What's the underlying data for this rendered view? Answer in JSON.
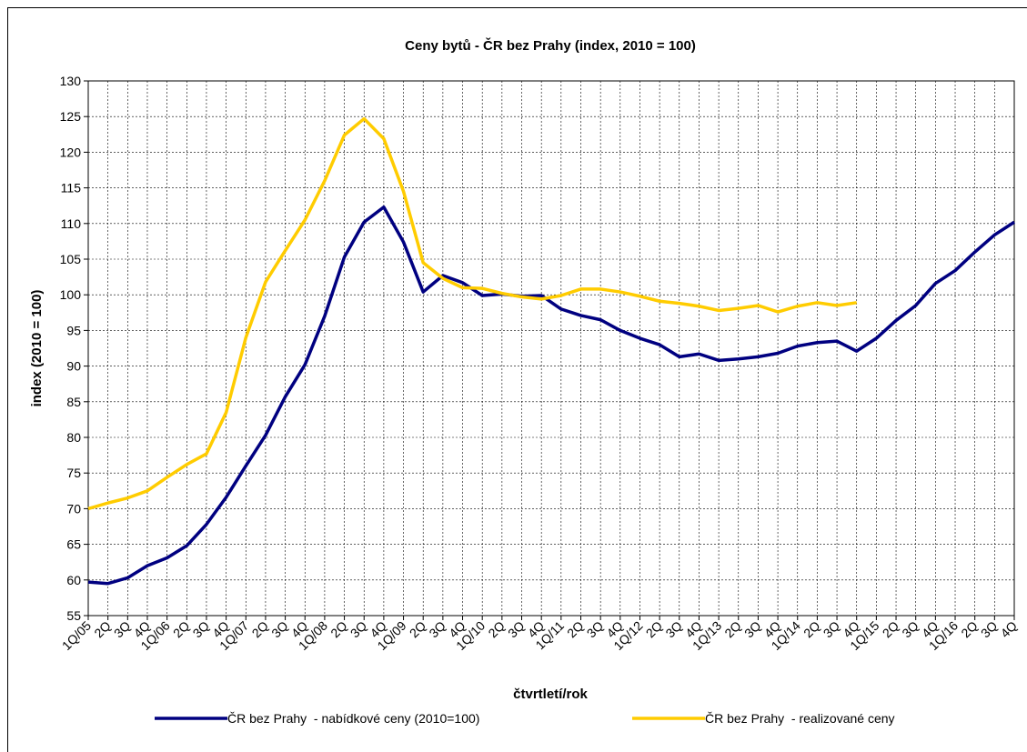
{
  "chart_data": {
    "type": "line",
    "title": "Ceny bytů - ČR bez Prahy (index, 2010 = 100)",
    "y_label": "index (2010 = 100)",
    "x_label": "čtvrtletí/rok",
    "categories": [
      "1Q/05",
      "2Q",
      "3Q",
      "4Q",
      "1Q/06",
      "2Q",
      "3Q",
      "4Q",
      "1Q/07",
      "2Q",
      "3Q",
      "4Q",
      "1Q/08",
      "2Q",
      "3Q",
      "4Q",
      "1Q/09",
      "2Q",
      "3Q",
      "4Q",
      "1Q/10",
      "2Q",
      "3Q",
      "4Q",
      "1Q/11",
      "2Q",
      "3Q",
      "4Q",
      "1Q/12",
      "2Q",
      "3Q",
      "4Q",
      "1Q/13",
      "2Q",
      "3Q",
      "4Q",
      "1Q/14",
      "2Q",
      "3Q",
      "4Q",
      "1Q/15",
      "2Q",
      "3Q",
      "4Q",
      "1Q/16",
      "2Q",
      "3Q",
      "4Q"
    ],
    "series": [
      {
        "name": "ČR bez Prahy  - nabídkové ceny (2010=100)",
        "color": "#000080",
        "values": [
          59.7,
          59.5,
          60.3,
          62.0,
          63.1,
          64.8,
          67.8,
          71.6,
          76.0,
          80.3,
          85.7,
          90.2,
          97.0,
          105.3,
          110.2,
          112.3,
          107.4,
          100.4,
          102.7,
          101.7,
          99.9,
          100.1,
          99.8,
          99.9,
          98.0,
          97.1,
          96.5,
          95.0,
          93.9,
          93.0,
          91.3,
          91.7,
          90.8,
          91.0,
          91.3,
          91.8,
          92.8,
          93.3,
          93.5,
          92.1,
          93.9,
          96.4,
          98.5,
          101.6,
          103.4,
          106.0,
          108.4,
          110.2
        ]
      },
      {
        "name": "ČR bez Prahy  - realizované ceny",
        "color": "#ffcc00",
        "values": [
          70.0,
          70.8,
          71.5,
          72.5,
          74.4,
          76.2,
          77.7,
          83.5,
          94.0,
          101.8,
          106.2,
          110.5,
          116.0,
          122.4,
          124.7,
          121.9,
          114.5,
          104.5,
          102.3,
          101.0,
          100.9,
          100.2,
          99.7,
          99.4,
          99.9,
          100.8,
          100.8,
          100.4,
          99.8,
          99.1,
          98.8,
          98.4,
          97.8,
          98.1,
          98.5,
          97.6,
          98.4,
          98.9,
          98.5,
          98.9,
          null,
          null,
          null,
          null,
          null,
          null,
          null,
          null
        ]
      }
    ],
    "ylim": [
      55,
      130
    ],
    "yticks": [
      55,
      60,
      65,
      70,
      75,
      80,
      85,
      90,
      95,
      100,
      105,
      110,
      115,
      120,
      125,
      130
    ],
    "grid": true
  }
}
